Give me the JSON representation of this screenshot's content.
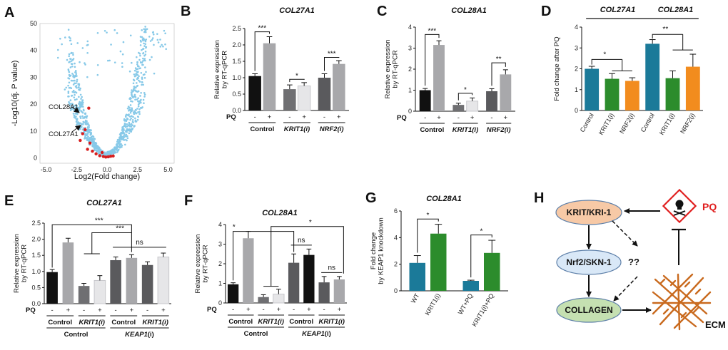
{
  "colors": {
    "black": "#111111",
    "light_gray": "#a8a8ab",
    "mid_gray": "#6f6f72",
    "dark_gray": "#5a5a5d",
    "whiteish": "#e6e6e8",
    "teal": "#1b7a99",
    "green": "#2c8c2c",
    "orange": "#f28c1e",
    "volcano_dot": "#87c9e8",
    "volcano_hit": "#d81e1e",
    "node_krit": "#f7c9a6",
    "node_nrf2": "#d9e8f7",
    "node_collagen": "#c5e0b1",
    "ecm": "#c96a1e",
    "pq_red": "#e01e1e"
  },
  "chart_data": [
    {
      "panel": "A",
      "type": "scatter",
      "title": "",
      "xlabel": "Log2(Fold change)",
      "ylabel": "-Log10(dj. P value)",
      "xlim": [
        -5.5,
        5.5
      ],
      "ylim": [
        -2,
        50
      ],
      "xticks": [
        "-5.0",
        "-2.5",
        "0.0",
        "2.5",
        "5.0"
      ],
      "yticks": [
        "0",
        "10",
        "20",
        "30",
        "40",
        "50"
      ],
      "annotations": [
        "COL28A1",
        "COL27A1"
      ],
      "highlight_points": [
        {
          "label": "COL28A1",
          "x": -1.8,
          "y": 10.5
        },
        {
          "label": "COL27A1",
          "x": -2.2,
          "y": 6.5
        }
      ]
    },
    {
      "panel": "B",
      "type": "bar",
      "title": "COL27A1",
      "ylabel": "Relative expression by RT-qPCR",
      "ylim": [
        0,
        2.5
      ],
      "yticks": [
        "0.0",
        "0.5",
        "1.0",
        "1.5",
        "2.0",
        "2.5"
      ],
      "row_label": "PQ",
      "bars": [
        {
          "pq": "-",
          "value": 1.05,
          "err": 0.07,
          "color": "black"
        },
        {
          "pq": "+",
          "value": 2.05,
          "err": 0.2,
          "color": "light_gray"
        },
        {
          "pq": "-",
          "value": 0.65,
          "err": 0.13,
          "color": "mid_gray"
        },
        {
          "pq": "+",
          "value": 0.75,
          "err": 0.1,
          "color": "whiteish"
        },
        {
          "pq": "-",
          "value": 1.0,
          "err": 0.12,
          "color": "dark_gray"
        },
        {
          "pq": "+",
          "value": 1.42,
          "err": 0.1,
          "color": "light_gray"
        }
      ],
      "groups": [
        {
          "label": "Control",
          "italic": false
        },
        {
          "label": "KRIT1(i)",
          "italic": true
        },
        {
          "label": "NRF2(i)",
          "italic": true
        }
      ],
      "sig": [
        {
          "from": 0,
          "to": 1,
          "text": "***",
          "y": 2.4
        },
        {
          "from": 2,
          "to": 3,
          "text": "*",
          "y": 0.95
        },
        {
          "from": 4,
          "to": 5,
          "text": "***",
          "y": 1.62
        }
      ]
    },
    {
      "panel": "C",
      "type": "bar",
      "title": "COL28A1",
      "ylabel": "Relative expression by RT-qPCR",
      "ylim": [
        0,
        4
      ],
      "yticks": [
        "0",
        "1",
        "2",
        "3",
        "4"
      ],
      "row_label": "PQ",
      "bars": [
        {
          "pq": "-",
          "value": 1.0,
          "err": 0.08,
          "color": "black"
        },
        {
          "pq": "+",
          "value": 3.15,
          "err": 0.2,
          "color": "light_gray"
        },
        {
          "pq": "-",
          "value": 0.3,
          "err": 0.08,
          "color": "mid_gray"
        },
        {
          "pq": "+",
          "value": 0.48,
          "err": 0.15,
          "color": "whiteish"
        },
        {
          "pq": "-",
          "value": 0.95,
          "err": 0.12,
          "color": "dark_gray"
        },
        {
          "pq": "+",
          "value": 1.75,
          "err": 0.22,
          "color": "light_gray"
        }
      ],
      "groups": [
        {
          "label": "Control",
          "italic": false
        },
        {
          "label": "KRIT1(i)",
          "italic": true
        },
        {
          "label": "NRF2(i)",
          "italic": true
        }
      ],
      "sig": [
        {
          "from": 0,
          "to": 1,
          "text": "***",
          "y": 3.65
        },
        {
          "from": 2,
          "to": 3,
          "text": "*",
          "y": 0.85
        },
        {
          "from": 4,
          "to": 5,
          "text": "**",
          "y": 2.3
        }
      ]
    },
    {
      "panel": "D",
      "type": "bar",
      "title": "",
      "title_left": "COL27A1",
      "title_right": "COL28A1",
      "ylabel": "Fold change after PQ",
      "ylim": [
        0,
        4
      ],
      "yticks": [
        "0",
        "1",
        "2",
        "3",
        "4"
      ],
      "bars": [
        {
          "label": "Control",
          "value": 2.0,
          "err": 0.12,
          "color": "teal"
        },
        {
          "label": "KRIT1(i)",
          "value": 1.52,
          "err": 0.25,
          "color": "green"
        },
        {
          "label": "NRF2(i)",
          "value": 1.42,
          "err": 0.15,
          "color": "orange"
        },
        {
          "label": "Control",
          "value": 3.2,
          "err": 0.2,
          "color": "teal"
        },
        {
          "label": "KRIT1(i)",
          "value": 1.55,
          "err": 0.35,
          "color": "green"
        },
        {
          "label": "NRF2(i)",
          "value": 2.1,
          "err": 0.6,
          "color": "orange"
        }
      ],
      "sig": [
        {
          "text": "*",
          "note": "Control vs KRIT1(i)/NRF2(i) COL27A1"
        },
        {
          "text": "**",
          "note": "Control vs KRIT1(i)/NRF2(i) COL28A1"
        }
      ]
    },
    {
      "panel": "E",
      "type": "bar",
      "title": "COL27A1",
      "ylabel": "Relative expression by RT-qPCR",
      "ylim": [
        0,
        2.5
      ],
      "yticks": [
        "0.0",
        "0.5",
        "1.0",
        "1.5",
        "2.0",
        "2.5"
      ],
      "row_label": "PQ",
      "bars": [
        {
          "pq": "-",
          "value": 0.98,
          "err": 0.08,
          "color": "black"
        },
        {
          "pq": "+",
          "value": 1.9,
          "err": 0.13,
          "color": "light_gray"
        },
        {
          "pq": "-",
          "value": 0.55,
          "err": 0.08,
          "color": "mid_gray"
        },
        {
          "pq": "+",
          "value": 0.72,
          "err": 0.15,
          "color": "whiteish"
        },
        {
          "pq": "-",
          "value": 1.35,
          "err": 0.1,
          "color": "dark_gray"
        },
        {
          "pq": "+",
          "value": 1.42,
          "err": 0.1,
          "color": "light_gray"
        },
        {
          "pq": "-",
          "value": 1.2,
          "err": 0.1,
          "color": "dark_gray"
        },
        {
          "pq": "+",
          "value": 1.45,
          "err": 0.12,
          "color": "whiteish"
        }
      ],
      "groups": [
        {
          "label": "Control",
          "italic": false
        },
        {
          "label": "KRIT1(i)",
          "italic": true
        },
        {
          "label": "Control",
          "italic": false
        },
        {
          "label": "KRIT1(i)",
          "italic": true
        }
      ],
      "supergroups": [
        {
          "label": "Control",
          "italic": false
        },
        {
          "label": "KEAP1",
          "italic": true,
          "suffix": "(i)"
        }
      ],
      "sig_labels": [
        "***",
        "***",
        "ns"
      ]
    },
    {
      "panel": "F",
      "type": "bar",
      "title": "COL28A1",
      "ylabel": "Relative expression by RT-qPCR",
      "ylim": [
        0,
        4
      ],
      "yticks": [
        "0",
        "1",
        "2",
        "3",
        "4"
      ],
      "row_label": "PQ",
      "bars": [
        {
          "pq": "-",
          "value": 0.95,
          "err": 0.08,
          "color": "black"
        },
        {
          "pq": "+",
          "value": 3.3,
          "err": 0.35,
          "color": "light_gray"
        },
        {
          "pq": "-",
          "value": 0.3,
          "err": 0.12,
          "color": "mid_gray"
        },
        {
          "pq": "+",
          "value": 0.45,
          "err": 0.25,
          "color": "whiteish"
        },
        {
          "pq": "-",
          "value": 2.05,
          "err": 0.45,
          "color": "dark_gray"
        },
        {
          "pq": "+",
          "value": 2.45,
          "err": 0.3,
          "color": "black"
        },
        {
          "pq": "-",
          "value": 1.05,
          "err": 0.3,
          "color": "dark_gray"
        },
        {
          "pq": "+",
          "value": 1.2,
          "err": 0.15,
          "color": "light_gray"
        }
      ],
      "groups": [
        {
          "label": "Control",
          "italic": false
        },
        {
          "label": "KRIT1(i)",
          "italic": true
        },
        {
          "label": "Control",
          "italic": false
        },
        {
          "label": "KRIT1(i)",
          "italic": true
        }
      ],
      "supergroups": [
        {
          "label": "Control",
          "italic": false
        },
        {
          "label": "KEAP1",
          "italic": true,
          "suffix": "(i)"
        }
      ],
      "sig_labels": [
        "*",
        "*",
        "ns",
        "ns"
      ]
    },
    {
      "panel": "G",
      "type": "bar",
      "title": "COL28A1",
      "ylabel": "Fold change by KEAP1 knockdown",
      "ylim": [
        0,
        6
      ],
      "yticks": [
        "0",
        "2",
        "4",
        "6"
      ],
      "bars": [
        {
          "label": "WT",
          "value": 2.1,
          "err": 0.55,
          "color": "teal"
        },
        {
          "label": "KRIT1(i)",
          "value": 4.3,
          "err": 0.7,
          "color": "green"
        },
        {
          "label": "WT+PQ",
          "value": 0.75,
          "err": 0.05,
          "color": "teal"
        },
        {
          "label": "KRIT1(i)+PQ",
          "value": 2.85,
          "err": 0.95,
          "color": "green"
        }
      ],
      "sig": [
        {
          "from": 0,
          "to": 1,
          "text": "*",
          "y": 5.4
        },
        {
          "from": 2,
          "to": 3,
          "text": "*",
          "y": 4.2
        }
      ]
    }
  ],
  "diagram": {
    "panel": "H",
    "nodes": {
      "krit": "KRIT/KRI-1",
      "nrf2": "Nrf2/SKN-1",
      "collagen": "COLLAGEN"
    },
    "unknown": "??",
    "pq": "PQ",
    "ecm": "ECM"
  },
  "panel_letters": [
    "A",
    "B",
    "C",
    "D",
    "E",
    "F",
    "G",
    "H"
  ]
}
